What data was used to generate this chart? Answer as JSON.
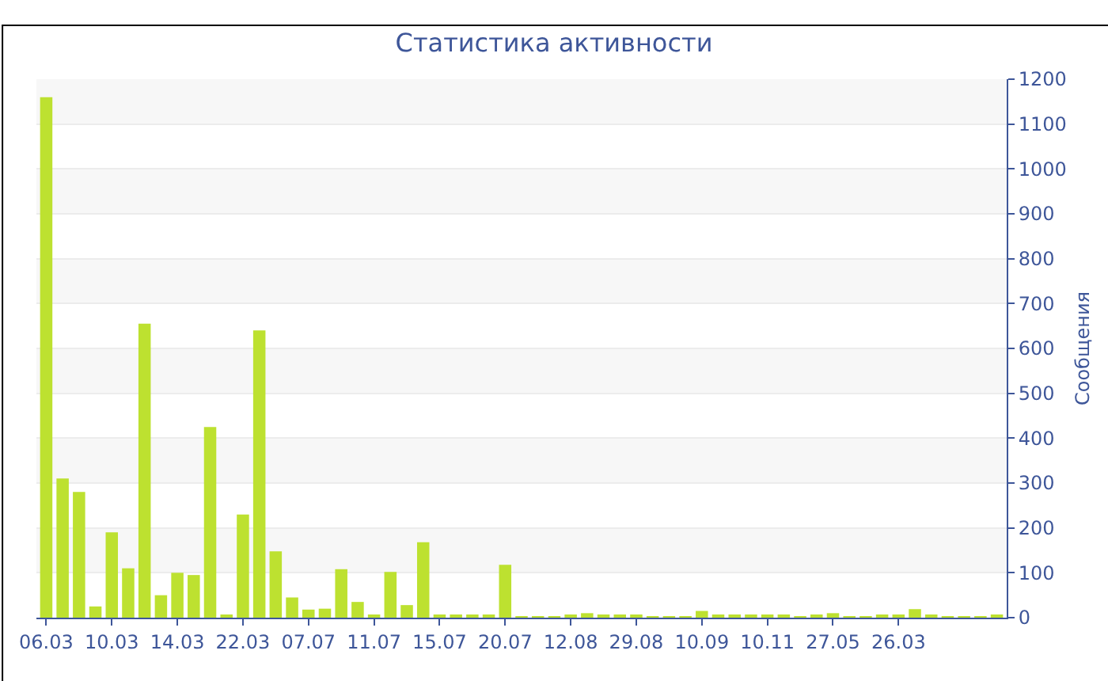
{
  "chart_data": {
    "type": "bar",
    "title": "Статистика активности",
    "ylabel": "Сообщения",
    "categories": [
      "06.03",
      null,
      null,
      null,
      "10.03",
      null,
      null,
      null,
      "14.03",
      null,
      null,
      null,
      "22.03",
      null,
      null,
      null,
      "07.07",
      null,
      null,
      null,
      "11.07",
      null,
      null,
      null,
      "15.07",
      null,
      null,
      null,
      "20.07",
      null,
      null,
      null,
      "12.08",
      null,
      null,
      null,
      "29.08",
      null,
      null,
      null,
      "10.09",
      null,
      null,
      null,
      "10.11",
      null,
      null,
      null,
      "27.05",
      null,
      null,
      null,
      "26.03",
      null,
      null,
      null,
      null,
      null,
      null
    ],
    "values": [
      1160,
      310,
      280,
      25,
      190,
      110,
      655,
      50,
      100,
      95,
      425,
      7,
      230,
      640,
      148,
      45,
      18,
      20,
      108,
      35,
      7,
      102,
      28,
      168,
      5,
      5,
      5,
      7,
      118,
      3,
      3,
      3,
      5,
      10,
      5,
      7,
      5,
      3,
      3,
      3,
      15,
      5,
      5,
      5,
      5,
      5,
      3,
      5,
      10,
      3,
      3,
      5,
      5,
      19,
      5,
      3,
      3,
      3,
      4
    ],
    "color": "#bde130",
    "ylim": [
      0,
      1200
    ],
    "yticks": [
      0,
      100,
      200,
      300,
      400,
      500,
      600,
      700,
      800,
      900,
      1000,
      1100,
      1200
    ],
    "grid": "y"
  }
}
